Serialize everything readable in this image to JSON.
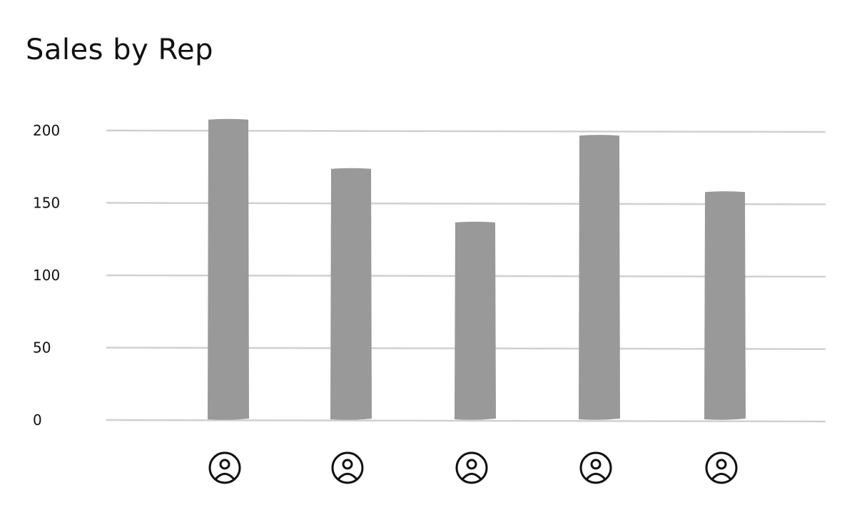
{
  "chart_data": {
    "type": "bar",
    "title": "Sales by Rep",
    "xlabel": "",
    "ylabel": "",
    "categories": [
      "",
      "",
      "",
      "",
      ""
    ],
    "category_icons": [
      "user-icon",
      "user-icon",
      "user-icon",
      "user-icon",
      "user-icon"
    ],
    "values": [
      208,
      174,
      137,
      197,
      158
    ],
    "ylim": [
      0,
      200
    ],
    "yticks": [
      "0",
      "50",
      "100",
      "150",
      "200"
    ],
    "grid": true,
    "legend": "none",
    "colors": {
      "bar": "#999999",
      "grid": "#d0d0d0",
      "text": "#111111"
    }
  }
}
